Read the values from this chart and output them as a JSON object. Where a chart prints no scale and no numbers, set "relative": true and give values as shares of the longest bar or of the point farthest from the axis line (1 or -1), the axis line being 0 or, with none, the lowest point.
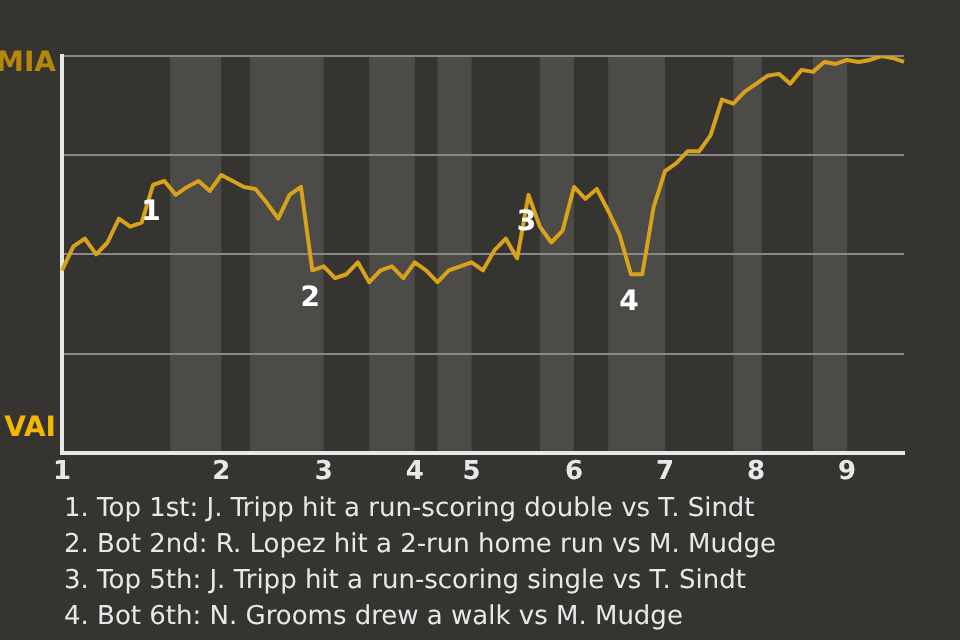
{
  "chart_data": {
    "type": "line",
    "relative": true,
    "categories": [
      "1",
      null,
      null,
      null,
      null,
      null,
      null,
      null,
      null,
      null,
      null,
      null,
      null,
      null,
      "2",
      null,
      null,
      null,
      null,
      null,
      null,
      null,
      null,
      "3",
      null,
      null,
      null,
      null,
      null,
      null,
      null,
      "4",
      null,
      null,
      null,
      null,
      "5",
      null,
      null,
      null,
      null,
      null,
      null,
      null,
      null,
      "6",
      null,
      null,
      null,
      null,
      null,
      null,
      null,
      "7",
      null,
      null,
      null,
      null,
      null,
      null,
      null,
      "8",
      null,
      null,
      null,
      null,
      null,
      null,
      null,
      "9",
      null,
      null,
      null,
      null,
      null
    ],
    "series": [
      {
        "color": "#d9a21b",
        "values": [
          0.46,
          0.52,
          0.54,
          0.5,
          0.53,
          0.59,
          0.57,
          0.58,
          0.675,
          0.685,
          0.65,
          0.67,
          0.685,
          0.66,
          0.7,
          0.685,
          0.67,
          0.665,
          0.63,
          0.59,
          0.65,
          0.67,
          0.46,
          0.47,
          0.44,
          0.45,
          0.48,
          0.43,
          0.46,
          0.47,
          0.44,
          0.48,
          0.46,
          0.43,
          0.46,
          0.47,
          0.48,
          0.46,
          0.51,
          0.54,
          0.49,
          0.65,
          0.57,
          0.53,
          0.56,
          0.67,
          0.64,
          0.665,
          0.61,
          0.55,
          0.45,
          0.45,
          0.62,
          0.71,
          0.73,
          0.76,
          0.76,
          0.8,
          0.89,
          0.88,
          0.91,
          0.93,
          0.95,
          0.955,
          0.93,
          0.965,
          0.96,
          0.985,
          0.98,
          0.99,
          0.985,
          0.99,
          1.0,
          0.995,
          0.985
        ]
      }
    ],
    "grid": "y",
    "legend": false,
    "marker": "none",
    "line_style": "solid",
    "annotations": [
      "MIA",
      "VAI",
      {
        "text": "1",
        "y": 0.675
      },
      {
        "text": "2",
        "y": 0.46
      },
      {
        "text": "3",
        "y": 0.65
      },
      {
        "text": "4",
        "y": 0.45
      },
      "1. Top 1st: J. Tripp hit a run-scoring double vs T. Sindt",
      "2. Bot 2nd: R. Lopez hit a 2-run home run vs M. Mudge",
      "3. Top 5th: J. Tripp hit a run-scoring single vs T. Sindt",
      "4. Bot 6th: N. Grooms drew a walk vs M. Mudge"
    ]
  }
}
